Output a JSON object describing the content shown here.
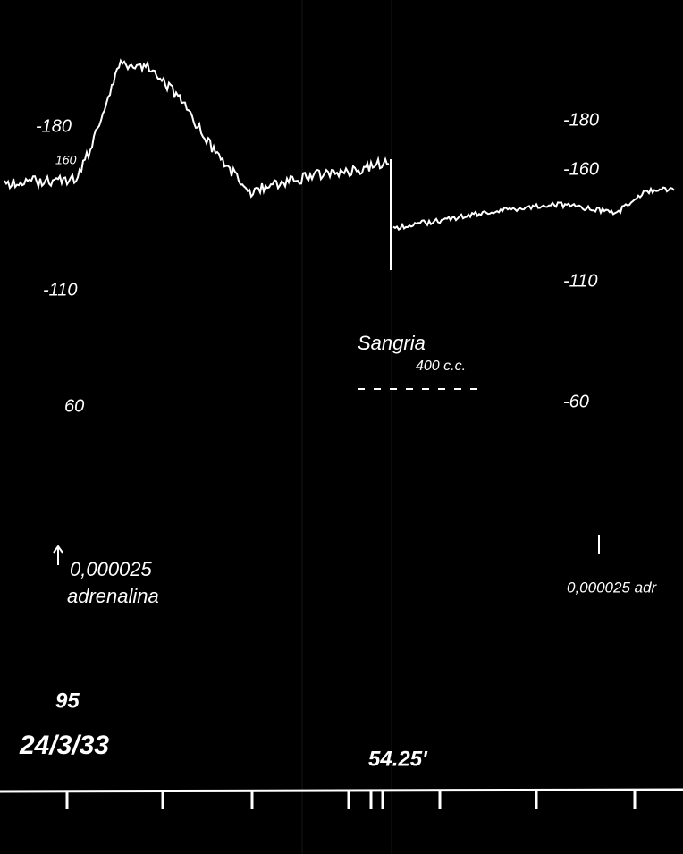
{
  "left_scale": [
    "-180",
    "160",
    "-110",
    "60"
  ],
  "right_scale": [
    "-180",
    "-160",
    "-110",
    "-60"
  ],
  "annotations": {
    "bleeding": "Sangria",
    "bleeding_volume": "400 c.c.",
    "first_dose": "0,000025",
    "first_drug": "adrenalina",
    "second_dose": "0,000025 adr",
    "number": "95",
    "date": "24/3/33",
    "time": "54.25'"
  }
}
